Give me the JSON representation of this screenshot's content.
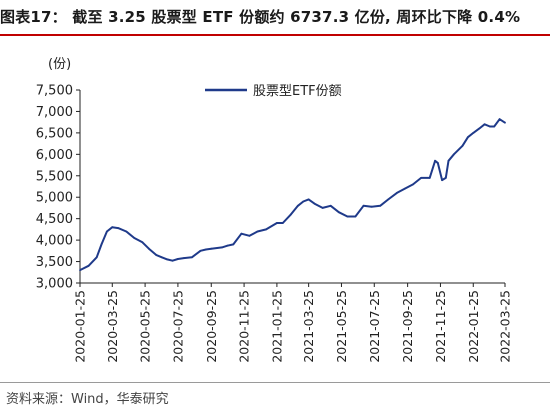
{
  "header": {
    "title": "图表17： 截至 3.25 股票型 ETF 份额约 6737.3 亿份, 周环比下降 0.4%"
  },
  "footer": {
    "source": "资料来源：Wind，华泰研究"
  },
  "colors": {
    "series": "#1f3a8a",
    "title_rule": "#c00000",
    "axis": "#222222"
  },
  "chart_data": {
    "type": "line",
    "title": "",
    "ylabel": "(份)",
    "xlabel": "",
    "ylim": [
      3000,
      7500
    ],
    "yticks": [
      3000,
      3500,
      4000,
      4500,
      5000,
      5500,
      6000,
      6500,
      7000,
      7500
    ],
    "ytick_labels": [
      "3,000",
      "3,500",
      "4,000",
      "4,500",
      "5,000",
      "5,500",
      "6,000",
      "6,500",
      "7,000",
      "7,500"
    ],
    "xlim": [
      "2020-01-25",
      "2022-03-25"
    ],
    "xtick_labels": [
      "2020-01-25",
      "2020-03-25",
      "2020-05-25",
      "2020-07-25",
      "2020-09-25",
      "2020-11-25",
      "2021-01-25",
      "2021-03-25",
      "2021-05-25",
      "2021-07-25",
      "2021-09-25",
      "2021-11-25",
      "2022-01-25",
      "2022-03-25"
    ],
    "grid": false,
    "legend": "top-left",
    "series": [
      {
        "name": "股票型ETF份额",
        "x": [
          "2020-01-25",
          "2020-02-10",
          "2020-02-25",
          "2020-03-05",
          "2020-03-15",
          "2020-03-25",
          "2020-04-05",
          "2020-04-20",
          "2020-05-05",
          "2020-05-20",
          "2020-06-01",
          "2020-06-15",
          "2020-06-25",
          "2020-07-05",
          "2020-07-15",
          "2020-07-25",
          "2020-08-05",
          "2020-08-20",
          "2020-09-05",
          "2020-09-15",
          "2020-09-25",
          "2020-10-15",
          "2020-10-25",
          "2020-11-05",
          "2020-11-20",
          "2020-12-05",
          "2020-12-20",
          "2021-01-05",
          "2021-01-25",
          "2021-02-05",
          "2021-02-20",
          "2021-03-05",
          "2021-03-15",
          "2021-03-25",
          "2021-04-05",
          "2021-04-20",
          "2021-05-05",
          "2021-05-20",
          "2021-06-05",
          "2021-06-20",
          "2021-07-05",
          "2021-07-20",
          "2021-08-05",
          "2021-08-20",
          "2021-09-05",
          "2021-09-20",
          "2021-10-05",
          "2021-10-20",
          "2021-11-05",
          "2021-11-15",
          "2021-11-20",
          "2021-11-28",
          "2021-12-05",
          "2021-12-10",
          "2021-12-20",
          "2022-01-05",
          "2022-01-15",
          "2022-01-25",
          "2022-02-05",
          "2022-02-15",
          "2022-02-25",
          "2022-03-05",
          "2022-03-15",
          "2022-03-25"
        ],
        "values": [
          3300,
          3400,
          3600,
          3900,
          4200,
          4300,
          4280,
          4200,
          4050,
          3950,
          3800,
          3650,
          3600,
          3550,
          3520,
          3560,
          3580,
          3600,
          3750,
          3780,
          3800,
          3830,
          3870,
          3900,
          4150,
          4100,
          4200,
          4250,
          4400,
          4400,
          4600,
          4800,
          4900,
          4950,
          4850,
          4750,
          4800,
          4650,
          4550,
          4550,
          4800,
          4780,
          4800,
          4950,
          5100,
          5200,
          5300,
          5450,
          5450,
          5850,
          5800,
          5400,
          5450,
          5850,
          6000,
          6200,
          6400,
          6500,
          6600,
          6700,
          6650,
          6650,
          6820,
          6737.3
        ]
      }
    ]
  }
}
